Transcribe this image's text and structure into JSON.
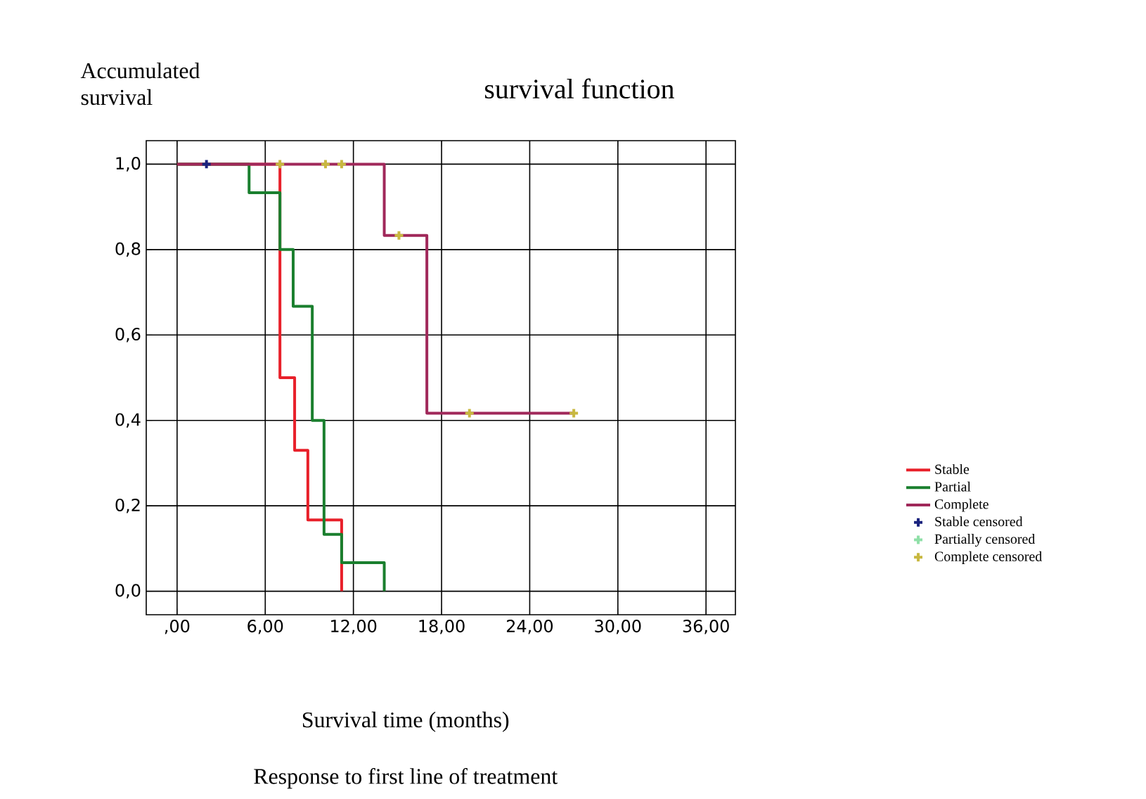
{
  "chart_data": {
    "type": "step",
    "title": "survival function",
    "ylabel": "Accumulated survival",
    "xlabel": "Survival time (months)",
    "annotations": [
      "Response to first line of treatment"
    ],
    "xlim": [
      -2.1,
      38
    ],
    "ylim": [
      -0.055,
      1.055
    ],
    "xticks": [
      {
        "value": 0,
        "label": ",00"
      },
      {
        "value": 6,
        "label": "6,00"
      },
      {
        "value": 12,
        "label": "12,00"
      },
      {
        "value": 18,
        "label": "18,00"
      },
      {
        "value": 24,
        "label": "24,00"
      },
      {
        "value": 30,
        "label": "30,00"
      },
      {
        "value": 36,
        "label": "36,00"
      }
    ],
    "yticks": [
      {
        "value": 0,
        "label": "0,0"
      },
      {
        "value": 0.2,
        "label": "0,2"
      },
      {
        "value": 0.4,
        "label": "0,4"
      },
      {
        "value": 0.6,
        "label": "0,6"
      },
      {
        "value": 0.8,
        "label": "0,8"
      },
      {
        "value": 1,
        "label": "1,0"
      }
    ],
    "grid": true,
    "legend": "right",
    "marker": "none",
    "line_style": "solid",
    "series": [
      {
        "name": "Stable",
        "color": "#e8202a",
        "x": [
          0,
          7,
          8,
          8.9,
          11.2
        ],
        "values": [
          1,
          0.5,
          0.33,
          0.167,
          0
        ]
      },
      {
        "name": "Partial",
        "color": "#1a7f2e",
        "x": [
          0,
          4.9,
          7,
          7.9,
          9.2,
          10,
          11.2,
          14.1
        ],
        "values": [
          1,
          0.933,
          0.8,
          0.667,
          0.4,
          0.133,
          0.067,
          0
        ]
      },
      {
        "name": "Complete",
        "color": "#a0285a",
        "x": [
          0,
          14.1,
          17,
          27
        ],
        "values": [
          1,
          0.833,
          0.417,
          0.417
        ]
      },
      {
        "name": "Stable censored",
        "type": "scatter",
        "marker": "cross",
        "color": "#1a237e",
        "x": [
          2
        ],
        "values": [
          1
        ]
      },
      {
        "name": "Partially censored",
        "type": "scatter",
        "marker": "cross",
        "color": "#90e0a8"
      },
      {
        "name": "Complete censored",
        "type": "scatter",
        "marker": "cross",
        "color": "#c8b840",
        "x": [
          7,
          10.1,
          11.2,
          15.1,
          19.9,
          27
        ],
        "values": [
          1,
          1,
          1,
          0.833,
          0.417,
          0.417
        ]
      }
    ]
  }
}
